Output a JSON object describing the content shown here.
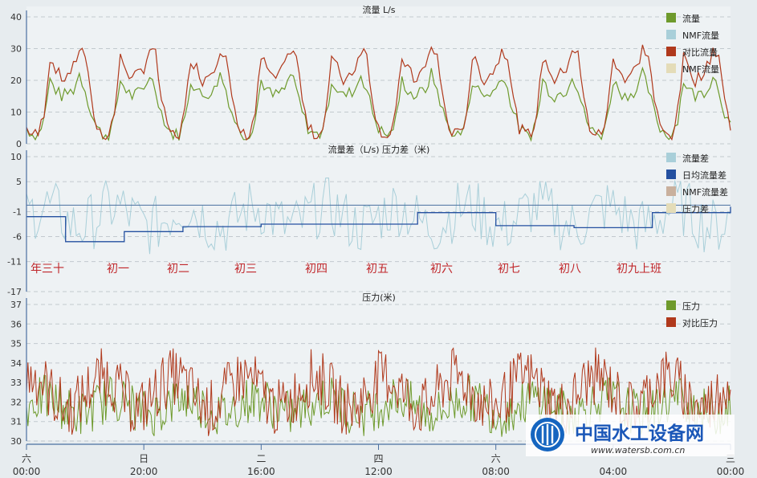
{
  "chart_data": [
    {
      "type": "line",
      "title": "流量 L/s",
      "ylim": [
        0,
        40
      ],
      "yticks": [
        0,
        10,
        20,
        30,
        40
      ],
      "grid": true,
      "legend": "top-right",
      "series": [
        {
          "name": "流量",
          "color": "#6e9a2c"
        },
        {
          "name": "NMF流量",
          "color": "#a9cfd9"
        },
        {
          "name": "对比流量",
          "color": "#b0391c"
        },
        {
          "name": "NMF流量",
          "color": "#e4dcb8"
        }
      ],
      "daily_profile": {
        "hours": [
          0,
          2,
          4,
          6,
          8,
          10,
          12,
          14,
          16,
          18,
          20,
          22,
          24
        ],
        "流量": [
          5,
          3,
          3,
          8,
          20,
          17,
          15,
          16,
          17,
          22,
          17,
          10,
          5
        ],
        "对比流量": [
          5,
          3,
          3,
          10,
          27,
          24,
          20,
          22,
          24,
          30,
          28,
          14,
          5
        ]
      }
    },
    {
      "type": "line",
      "title": "流量差（L/s)   压力差（米)",
      "ylim": [
        -17,
        10
      ],
      "yticks": [
        10,
        5,
        -1,
        -6,
        -11,
        -17
      ],
      "grid": true,
      "legend": "top-right",
      "series": [
        {
          "name": "流量差",
          "color": "#a9cfd9"
        },
        {
          "name": "日均流量差",
          "color": "#2450a0",
          "values": [
            -2.0,
            -7.0,
            -5.0,
            -4.0,
            -3.5,
            -3.5,
            -1.2,
            -3.8,
            -4.2,
            -1.2,
            0.0
          ]
        },
        {
          "name": "NMF流量差",
          "color": "#c9b09d"
        },
        {
          "name": "压力差",
          "color": "#e4dcb8"
        }
      ],
      "reference_line": {
        "y": 0.3,
        "color": "#4a6fa0"
      },
      "annotations": [
        "年三十",
        "初一",
        "初二",
        "初三",
        "初四",
        "初五",
        "初六",
        "初七",
        "初八",
        "初九上班"
      ]
    },
    {
      "type": "line",
      "title": "压力(米)",
      "ylim": [
        30,
        37
      ],
      "yticks": [
        30,
        31,
        32,
        33,
        34,
        35,
        36,
        37
      ],
      "grid": true,
      "legend": "top-right",
      "series": [
        {
          "name": "压力",
          "color": "#6e9a2c"
        },
        {
          "name": "对比压力",
          "color": "#b0391c"
        }
      ]
    }
  ],
  "x_axis": {
    "ticks": [
      {
        "day": "六",
        "time": "00:00"
      },
      {
        "day": "日",
        "time": "20:00"
      },
      {
        "day": "二",
        "time": "16:00"
      },
      {
        "day": "四",
        "time": "12:00"
      },
      {
        "day": "六",
        "time": "08:00"
      },
      {
        "day": "",
        "time": "04:00"
      },
      {
        "day": "三",
        "time": "00:00"
      }
    ]
  },
  "watermark": {
    "title": "中国水工设备网",
    "url": "www.watersb.com.cn"
  }
}
